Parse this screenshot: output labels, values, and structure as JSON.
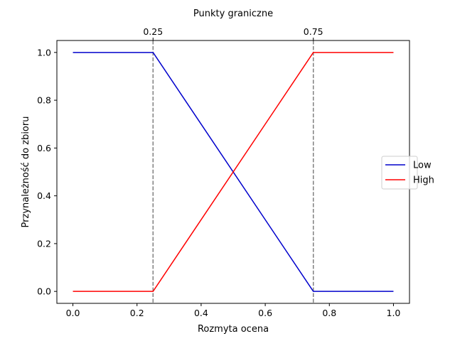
{
  "chart_data": {
    "type": "line",
    "title": "Punkty graniczne",
    "xlabel": "Rozmyta ocena",
    "ylabel": "Przynależność do zbioru",
    "xlim": [
      -0.05,
      1.05
    ],
    "ylim": [
      -0.05,
      1.05
    ],
    "xticks": [
      0.0,
      0.2,
      0.4,
      0.6,
      0.8,
      1.0
    ],
    "xtick_labels": [
      "0.0",
      "0.2",
      "0.4",
      "0.6",
      "0.8",
      "1.0"
    ],
    "yticks": [
      0.0,
      0.2,
      0.4,
      0.6,
      0.8,
      1.0
    ],
    "ytick_labels": [
      "0.0",
      "0.2",
      "0.4",
      "0.6",
      "0.8",
      "1.0"
    ],
    "top_ticks": [
      0.25,
      0.75
    ],
    "top_tick_labels": [
      "0.25",
      "0.75"
    ],
    "vlines": [
      0.25,
      0.75
    ],
    "grid": false,
    "legend_position": "right",
    "series": [
      {
        "name": "Low",
        "color": "#0000cc",
        "x": [
          0.0,
          0.25,
          0.75,
          1.0
        ],
        "y": [
          1.0,
          1.0,
          0.0,
          0.0
        ]
      },
      {
        "name": "High",
        "color": "#ff0000",
        "x": [
          0.0,
          0.25,
          0.75,
          1.0
        ],
        "y": [
          0.0,
          0.0,
          1.0,
          1.0
        ]
      }
    ],
    "vline_color": "#808080"
  }
}
